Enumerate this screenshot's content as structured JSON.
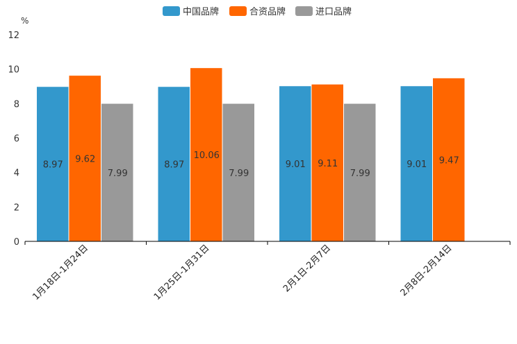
{
  "chart_data": {
    "type": "bar",
    "title": "",
    "xlabel": "",
    "ylabel": "%",
    "ylim": [
      0,
      12
    ],
    "yticks": [
      0,
      2,
      4,
      6,
      8,
      10,
      12
    ],
    "grid": false,
    "legend_position": "top-center",
    "categories": [
      "1月18日-1月24日",
      "1月25日-1月31日",
      "2月1日-2月7日",
      "2月8日-2月14日"
    ],
    "series": [
      {
        "name": "中国品牌",
        "color": "#3398CC",
        "values": [
          8.97,
          8.97,
          9.01,
          9.01
        ]
      },
      {
        "name": "合资品牌",
        "color": "#FF6600",
        "values": [
          9.62,
          10.06,
          9.11,
          9.47
        ]
      },
      {
        "name": "进口品牌",
        "color": "#999999",
        "values": [
          7.99,
          7.99,
          7.99,
          null
        ]
      }
    ]
  }
}
